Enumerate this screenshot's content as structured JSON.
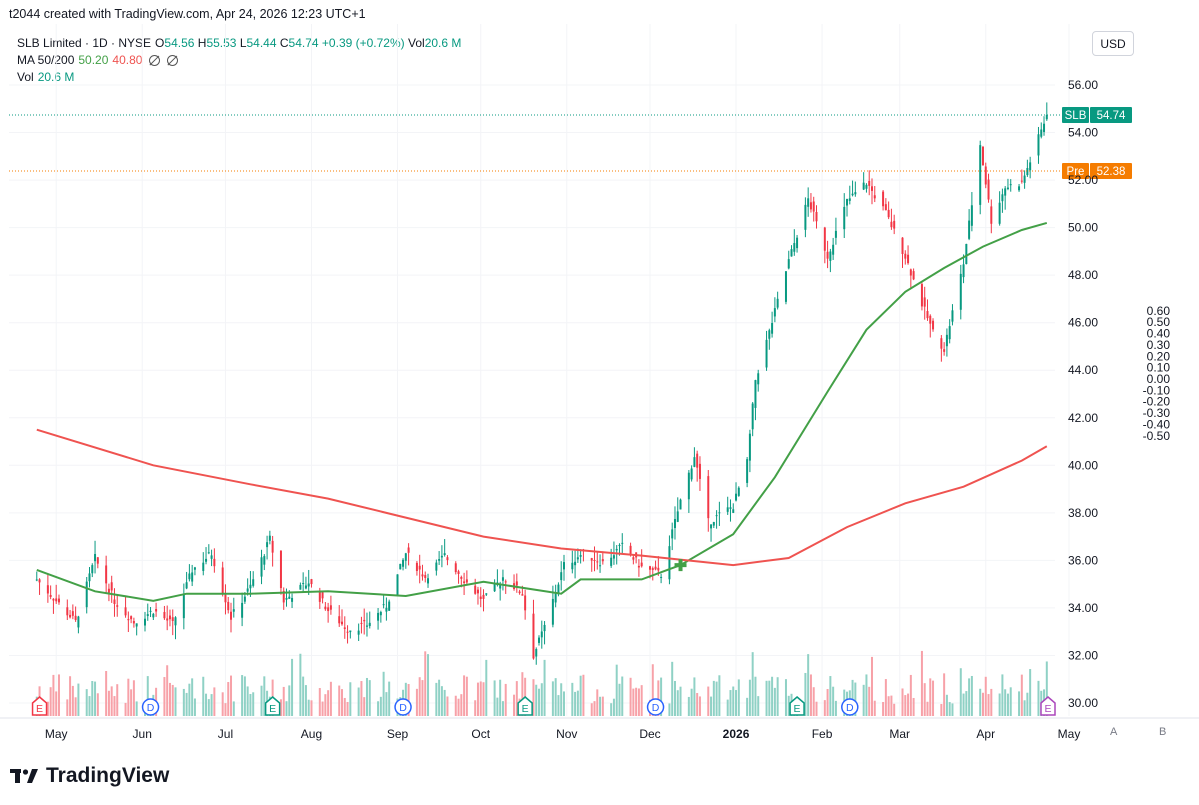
{
  "caption": "t2044 created with TradingView.com, Apr 24, 2026 12:23 UTC+1",
  "legend": {
    "symbol": "SLB Limited · 1D · NYSE",
    "o_label": "O",
    "o": "54.56",
    "h_label": "H",
    "h": "55.53",
    "l_label": "L",
    "l": "54.44",
    "c_label": "C",
    "c": "54.74",
    "change": "+0.39 (+0.72%)",
    "vol_label": "Vol",
    "vol": "20.6 M",
    "ma_label": "MA 50/200",
    "ma50": "50.20",
    "ma200": "40.80",
    "vol_row_label": "Vol",
    "vol_row_value": "20.6 M"
  },
  "currency": "USD",
  "brand": "TradingView",
  "scale_buttons": [
    "A",
    "B"
  ],
  "colors": {
    "up": "#089981",
    "down": "#f23645",
    "ma50": "#43a047",
    "ma200": "#ef5350",
    "pre": "#f57c00",
    "volUp": "#8fd1c5",
    "volDown": "#f7a1a8"
  },
  "chart_data": {
    "type": "candlestick",
    "title": "SLB Limited · 1D · NYSE",
    "x_ticks": [
      "May",
      "Jun",
      "Jul",
      "Aug",
      "Sep",
      "Oct",
      "Nov",
      "Dec",
      "2026",
      "Feb",
      "Mar",
      "Apr",
      "May"
    ],
    "y_ticks": [
      "30.00",
      "32.00",
      "34.00",
      "36.00",
      "38.00",
      "40.00",
      "42.00",
      "44.00",
      "46.00",
      "48.00",
      "50.00",
      "52.00",
      "54.00",
      "56.00"
    ],
    "y_range": [
      29.6,
      56.9
    ],
    "secondary_y_ticks": [
      "0.60",
      "0.50",
      "0.40",
      "0.30",
      "0.20",
      "0.10",
      "0.00",
      "-0.10",
      "-0.20",
      "-0.30",
      "-0.40",
      "-0.50"
    ],
    "last_price": {
      "label": "SLB",
      "value": "54.74",
      "price": 54.74
    },
    "pre_market": {
      "label": "Pre",
      "value": "52.38",
      "price": 52.38
    },
    "close_path": [
      [
        "2025-04-24",
        35.2
      ],
      [
        "2025-05-01",
        34.3
      ],
      [
        "2025-05-08",
        33.4
      ],
      [
        "2025-05-15",
        36.1
      ],
      [
        "2025-05-22",
        34.3
      ],
      [
        "2025-05-29",
        33.4
      ],
      [
        "2025-06-05",
        33.9
      ],
      [
        "2025-06-12",
        33.3
      ],
      [
        "2025-06-19",
        35.6
      ],
      [
        "2025-06-26",
        36.3
      ],
      [
        "2025-07-03",
        33.6
      ],
      [
        "2025-07-10",
        34.9
      ],
      [
        "2025-07-17",
        36.9
      ],
      [
        "2025-07-22",
        34.3
      ],
      [
        "2025-07-31",
        35.1
      ],
      [
        "2025-08-07",
        33.9
      ],
      [
        "2025-08-14",
        33.1
      ],
      [
        "2025-08-21",
        33.3
      ],
      [
        "2025-08-28",
        34.1
      ],
      [
        "2025-09-04",
        36.3
      ],
      [
        "2025-09-11",
        35.3
      ],
      [
        "2025-09-18",
        36.2
      ],
      [
        "2025-09-25",
        35.2
      ],
      [
        "2025-10-02",
        34.3
      ],
      [
        "2025-10-09",
        35.3
      ],
      [
        "2025-10-16",
        34.6
      ],
      [
        "2025-10-20",
        32.0
      ],
      [
        "2025-10-24",
        33.2
      ],
      [
        "2025-10-31",
        35.8
      ],
      [
        "2025-11-07",
        36.3
      ],
      [
        "2025-11-14",
        35.9
      ],
      [
        "2025-11-21",
        36.6
      ],
      [
        "2025-11-28",
        35.7
      ],
      [
        "2025-12-05",
        35.4
      ],
      [
        "2025-12-12",
        38.5
      ],
      [
        "2025-12-17",
        40.4
      ],
      [
        "2025-12-22",
        37.6
      ],
      [
        "2025-12-31",
        38.3
      ],
      [
        "2026-01-05",
        40.1
      ],
      [
        "2026-01-08",
        43.6
      ],
      [
        "2026-01-13",
        45.6
      ],
      [
        "2026-01-20",
        48.6
      ],
      [
        "2026-01-27",
        51.2
      ],
      [
        "2026-02-03",
        48.8
      ],
      [
        "2026-02-10",
        51.1
      ],
      [
        "2026-02-17",
        51.9
      ],
      [
        "2026-02-24",
        50.6
      ],
      [
        "2026-03-03",
        48.8
      ],
      [
        "2026-03-09",
        46.8
      ],
      [
        "2026-03-13",
        45.6
      ],
      [
        "2026-03-17",
        44.9
      ],
      [
        "2026-03-24",
        48.5
      ],
      [
        "2026-03-30",
        53.5
      ],
      [
        "2026-04-03",
        50.3
      ],
      [
        "2026-04-08",
        51.7
      ],
      [
        "2026-04-14",
        51.9
      ],
      [
        "2026-04-17",
        52.8
      ],
      [
        "2026-04-23",
        54.74
      ]
    ],
    "series": [
      {
        "name": "MA 50",
        "value": "50.20",
        "points": [
          [
            "2025-04-24",
            35.6
          ],
          [
            "2025-05-15",
            34.7
          ],
          [
            "2025-06-05",
            34.3
          ],
          [
            "2025-06-17",
            34.6
          ],
          [
            "2025-07-10",
            34.6
          ],
          [
            "2025-08-07",
            34.7
          ],
          [
            "2025-09-04",
            34.5
          ],
          [
            "2025-10-02",
            35.1
          ],
          [
            "2025-10-30",
            34.6
          ],
          [
            "2025-11-06",
            35.2
          ],
          [
            "2025-11-28",
            35.2
          ],
          [
            "2025-12-12",
            35.8
          ],
          [
            "2025-12-31",
            37.1
          ],
          [
            "2026-01-15",
            39.5
          ],
          [
            "2026-02-03",
            43.1
          ],
          [
            "2026-02-17",
            45.7
          ],
          [
            "2026-03-03",
            47.3
          ],
          [
            "2026-03-17",
            48.3
          ],
          [
            "2026-03-31",
            49.2
          ],
          [
            "2026-04-14",
            49.9
          ],
          [
            "2026-04-23",
            50.2
          ]
        ]
      },
      {
        "name": "MA 200",
        "value": "40.80",
        "points": [
          [
            "2025-04-24",
            41.5
          ],
          [
            "2025-06-05",
            40.0
          ],
          [
            "2025-07-10",
            39.2
          ],
          [
            "2025-08-07",
            38.6
          ],
          [
            "2025-09-04",
            37.8
          ],
          [
            "2025-10-02",
            37.0
          ],
          [
            "2025-10-30",
            36.5
          ],
          [
            "2025-11-28",
            36.2
          ],
          [
            "2025-12-31",
            35.8
          ],
          [
            "2026-01-20",
            36.1
          ],
          [
            "2026-02-10",
            37.4
          ],
          [
            "2026-03-03",
            38.4
          ],
          [
            "2026-03-24",
            39.1
          ],
          [
            "2026-04-14",
            40.2
          ],
          [
            "2026-04-23",
            40.8
          ]
        ]
      }
    ],
    "volume": {
      "last": "20.6 M"
    },
    "events": [
      {
        "kind": "E",
        "date": "2025-04-25"
      },
      {
        "kind": "D",
        "date": "2025-06-04"
      },
      {
        "kind": "E",
        "date": "2025-07-18"
      },
      {
        "kind": "D",
        "date": "2025-09-03"
      },
      {
        "kind": "E",
        "date": "2025-10-17"
      },
      {
        "kind": "D",
        "date": "2025-12-03"
      },
      {
        "kind": "E",
        "date": "2026-01-23"
      },
      {
        "kind": "D",
        "date": "2026-02-11"
      },
      {
        "kind": "E",
        "date": "2026-04-24"
      }
    ],
    "annotations": [
      {
        "kind": "golden-cross",
        "date": "2025-12-12"
      }
    ]
  }
}
